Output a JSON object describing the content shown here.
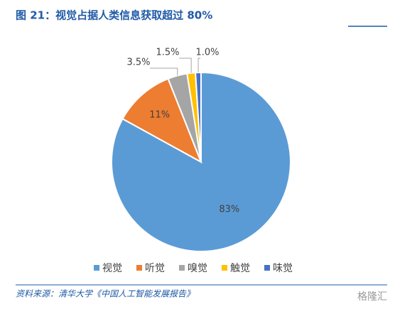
{
  "chart_data": {
    "type": "pie",
    "title": "图 21：视觉占据人类信息获取超过 80%",
    "categories": [
      "视觉",
      "听觉",
      "嗅觉",
      "触觉",
      "味觉"
    ],
    "values": [
      83,
      11,
      3.5,
      1.5,
      1.0
    ],
    "value_labels": [
      "83%",
      "11%",
      "3.5%",
      "1.5%",
      "1.0%"
    ],
    "colors": [
      "#5b9bd5",
      "#ed7d31",
      "#a5a5a5",
      "#ffc000",
      "#4472c4"
    ],
    "legend": "bottom",
    "source": "资料来源：清华大学《中国人工智能发展报告》",
    "watermark": "格隆汇"
  }
}
